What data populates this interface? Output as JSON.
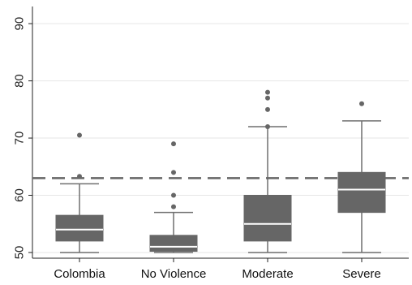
{
  "chart_data": {
    "type": "box",
    "title": "",
    "xlabel": "",
    "ylabel": "",
    "ylim": [
      49,
      93
    ],
    "yticks": [
      50,
      60,
      70,
      80,
      90
    ],
    "ytick_labels": [
      "50",
      "60",
      "70",
      "80",
      "90"
    ],
    "grid": true,
    "reference_line": {
      "value": 63,
      "style": "dashed"
    },
    "categories": [
      "Colombia",
      "No Violence",
      "Moderate",
      "Severe"
    ],
    "boxes": [
      {
        "category": "Colombia",
        "whisker_low": 50,
        "q1": 52,
        "median": 54,
        "q3": 56.5,
        "whisker_high": 62,
        "outliers": [
          63.3,
          70.5
        ]
      },
      {
        "category": "No Violence",
        "whisker_low": 50,
        "q1": 50.2,
        "median": 51,
        "q3": 53,
        "whisker_high": 57,
        "outliers": [
          58,
          60,
          64,
          69
        ]
      },
      {
        "category": "Moderate",
        "whisker_low": 50,
        "q1": 52,
        "median": 55,
        "q3": 60,
        "whisker_high": 72,
        "outliers": [
          72,
          75,
          77,
          78
        ]
      },
      {
        "category": "Severe",
        "whisker_low": 50,
        "q1": 57,
        "median": 61,
        "q3": 64,
        "whisker_high": 73,
        "outliers": [
          76
        ]
      }
    ],
    "colors": {
      "box": "#666666",
      "median": "#ffffff",
      "grid": "#e6e6e6",
      "reference": "#666666"
    }
  }
}
